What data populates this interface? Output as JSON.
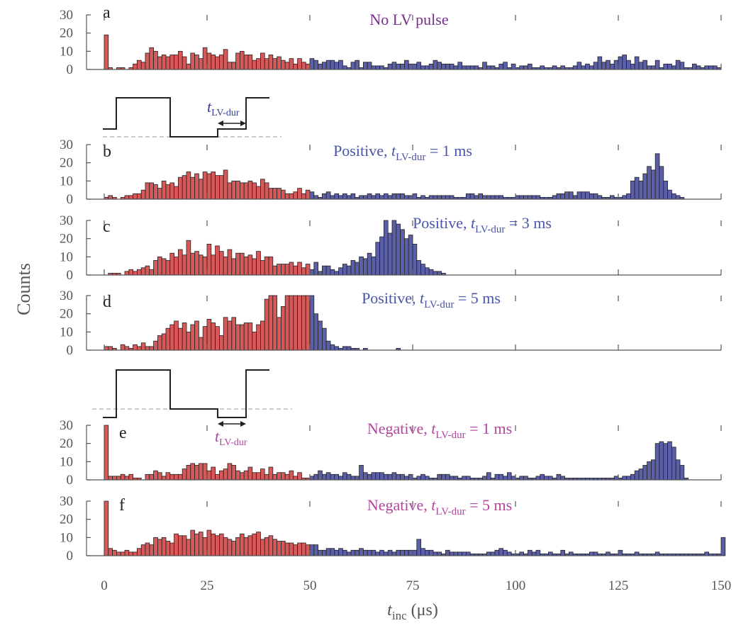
{
  "figure": {
    "ylabel": "Counts",
    "xlabel_main": "t",
    "xlabel_sub": "inc",
    "xlabel_unit": " (μs)",
    "xticks": [
      0,
      25,
      50,
      75,
      100,
      125,
      150
    ],
    "xlim": [
      0,
      150
    ],
    "yticks": [
      0,
      10,
      20,
      30
    ],
    "ylim": [
      0,
      30
    ],
    "bin_width_us": 1,
    "split_us": 50
  },
  "colors": {
    "early": "#d65858",
    "late": "#5a5fa8",
    "title_positive": "#4a56a8",
    "title_nolv": "#7a2e8c",
    "title_negative": "#b0469e"
  },
  "pulse_labels": {
    "t": "t",
    "sub": "LV-dur"
  },
  "chart_data": [
    {
      "type": "bar",
      "letter": "a",
      "title": {
        "pre": "No LV pulse",
        "t": "",
        "sub": "",
        "post": ""
      },
      "x_start": 0,
      "bin_width": 1,
      "values": [
        19,
        1,
        0,
        1,
        1,
        0,
        1,
        3,
        5,
        4,
        9,
        12,
        10,
        7,
        8,
        7,
        8,
        8,
        10,
        7,
        3,
        9,
        8,
        6,
        12,
        9,
        8,
        7,
        8,
        11,
        4,
        4,
        9,
        10,
        8,
        8,
        5,
        6,
        9,
        6,
        8,
        6,
        7,
        5,
        4,
        6,
        3,
        6,
        4,
        3,
        6,
        5,
        3,
        4,
        5,
        5,
        4,
        5,
        2,
        1,
        4,
        5,
        1,
        4,
        4,
        2,
        2,
        2,
        1,
        3,
        4,
        3,
        3,
        5,
        3,
        3,
        4,
        2,
        2,
        3,
        5,
        4,
        3,
        3,
        3,
        2,
        4,
        2,
        2,
        2,
        2,
        1,
        4,
        2,
        2,
        1,
        3,
        4,
        1,
        3,
        1,
        2,
        2,
        3,
        1,
        1,
        2,
        1,
        1,
        2,
        1,
        2,
        1,
        1,
        2,
        4,
        2,
        3,
        2,
        4,
        7,
        4,
        5,
        3,
        5,
        7,
        8,
        5,
        3,
        7,
        4,
        5,
        2,
        2,
        5,
        1,
        3,
        3,
        2,
        5,
        4,
        1,
        1,
        3,
        2,
        1,
        2,
        2,
        2,
        1
      ]
    },
    {
      "type": "bar",
      "letter": "b",
      "title": {
        "pre": "Positive,  ",
        "t": "t",
        "sub": "LV-dur",
        "post": " = 1 ms"
      },
      "x_start": 0,
      "bin_width": 1,
      "values": [
        1,
        2,
        1,
        0,
        1,
        2,
        2,
        3,
        3,
        5,
        9,
        9,
        8,
        6,
        10,
        8,
        9,
        7,
        12,
        13,
        15,
        12,
        14,
        11,
        15,
        14,
        15,
        13,
        13,
        16,
        9,
        10,
        10,
        9,
        9,
        10,
        9,
        7,
        11,
        9,
        6,
        6,
        6,
        5,
        3,
        3,
        4,
        6,
        3,
        5,
        4,
        2,
        1,
        3,
        4,
        2,
        3,
        2,
        3,
        2,
        3,
        1,
        2,
        2,
        3,
        2,
        3,
        2,
        3,
        2,
        3,
        3,
        3,
        2,
        2,
        3,
        1,
        2,
        1,
        2,
        2,
        2,
        2,
        2,
        2,
        1,
        1,
        1,
        3,
        3,
        2,
        3,
        2,
        2,
        2,
        2,
        2,
        1,
        1,
        1,
        2,
        2,
        2,
        2,
        2,
        2,
        1,
        1,
        1,
        2,
        3,
        3,
        4,
        4,
        2,
        4,
        4,
        4,
        3,
        3,
        2,
        1,
        1,
        2,
        1,
        1,
        2,
        3,
        10,
        12,
        10,
        14,
        18,
        16,
        25,
        18,
        10,
        5,
        3,
        2,
        1
      ]
    },
    {
      "type": "bar",
      "letter": "c",
      "title": {
        "pre": "Positive,  ",
        "t": "t",
        "sub": "LV-dur",
        "post": " = 3 ms"
      },
      "x_start": 1,
      "bin_width": 1,
      "values": [
        1,
        1,
        1,
        0,
        2,
        3,
        2,
        3,
        4,
        5,
        3,
        8,
        10,
        9,
        8,
        12,
        10,
        14,
        11,
        19,
        12,
        13,
        11,
        10,
        17,
        11,
        16,
        13,
        10,
        14,
        9,
        12,
        12,
        10,
        11,
        9,
        13,
        8,
        10,
        10,
        5,
        6,
        6,
        6,
        7,
        5,
        7,
        4,
        6,
        3,
        7,
        2,
        5,
        5,
        3,
        2,
        4,
        6,
        5,
        8,
        7,
        10,
        9,
        12,
        10,
        18,
        21,
        30,
        23,
        30,
        28,
        25,
        20,
        22,
        17,
        8,
        6,
        4,
        3,
        2,
        2,
        1
      ]
    },
    {
      "type": "bar",
      "letter": "d",
      "title": {
        "pre": "Positive,  ",
        "t": "t",
        "sub": "LV-dur",
        "post": " = 5 ms"
      },
      "x_start": 0,
      "bin_width": 1,
      "values": [
        2,
        2,
        1,
        0,
        3,
        2,
        1,
        3,
        2,
        4,
        2,
        2,
        5,
        8,
        9,
        12,
        14,
        16,
        12,
        15,
        10,
        14,
        16,
        7,
        13,
        17,
        15,
        13,
        8,
        18,
        16,
        18,
        14,
        14,
        15,
        15,
        10,
        14,
        16,
        28,
        35,
        30,
        18,
        24,
        30,
        33,
        36,
        34,
        30,
        34,
        30,
        20,
        16,
        12,
        5,
        3,
        2,
        1,
        2,
        2,
        1,
        1,
        0,
        1,
        0,
        0,
        0,
        0,
        0,
        0,
        0,
        1
      ]
    },
    {
      "type": "bar",
      "letter": "e",
      "title": {
        "pre": "Negative,  ",
        "t": "t",
        "sub": "LV-dur",
        "post": " = 1 ms"
      },
      "x_start": 0,
      "bin_width": 1,
      "values": [
        30,
        2,
        2,
        2,
        3,
        2,
        3,
        1,
        1,
        0,
        3,
        3,
        5,
        4,
        2,
        4,
        3,
        3,
        3,
        6,
        8,
        9,
        8,
        9,
        9,
        5,
        7,
        3,
        5,
        6,
        9,
        8,
        5,
        4,
        5,
        7,
        4,
        4,
        6,
        3,
        7,
        3,
        4,
        4,
        3,
        5,
        2,
        4,
        1,
        1,
        2,
        3,
        5,
        3,
        4,
        3,
        3,
        2,
        4,
        3,
        2,
        2,
        8,
        4,
        3,
        4,
        4,
        4,
        3,
        3,
        4,
        3,
        3,
        2,
        3,
        1,
        2,
        3,
        2,
        1,
        1,
        3,
        3,
        3,
        2,
        2,
        1,
        2,
        2,
        1,
        1,
        1,
        2,
        4,
        1,
        3,
        3,
        2,
        4,
        2,
        1,
        2,
        2,
        1,
        1,
        2,
        3,
        2,
        2,
        1,
        3,
        2,
        1,
        1,
        1,
        1,
        1,
        1,
        1,
        1,
        1,
        1,
        1,
        1,
        2,
        1,
        2,
        2,
        3,
        5,
        6,
        8,
        10,
        11,
        20,
        21,
        20,
        21,
        18,
        11,
        8,
        1
      ]
    },
    {
      "type": "bar",
      "letter": "f",
      "title": {
        "pre": "Negative,  ",
        "t": "t",
        "sub": "LV-dur",
        "post": " = 5 ms"
      },
      "x_start": 0,
      "bin_width": 1,
      "values": [
        30,
        4,
        3,
        2,
        2,
        3,
        2,
        2,
        4,
        6,
        7,
        6,
        10,
        9,
        10,
        8,
        7,
        12,
        11,
        11,
        9,
        14,
        12,
        13,
        10,
        14,
        12,
        11,
        12,
        10,
        9,
        8,
        10,
        12,
        10,
        11,
        12,
        13,
        9,
        10,
        11,
        9,
        8,
        8,
        7,
        7,
        6,
        7,
        7,
        6,
        6,
        6,
        3,
        3,
        4,
        4,
        3,
        4,
        3,
        2,
        3,
        3,
        4,
        3,
        3,
        3,
        2,
        3,
        2,
        3,
        2,
        3,
        3,
        3,
        3,
        3,
        9,
        4,
        3,
        3,
        2,
        2,
        1,
        3,
        2,
        2,
        2,
        2,
        2,
        1,
        1,
        1,
        1,
        2,
        2,
        3,
        4,
        3,
        2,
        1,
        1,
        2,
        1,
        3,
        2,
        3,
        1,
        1,
        2,
        1,
        1,
        3,
        1,
        2,
        1,
        1,
        1,
        1,
        2,
        2,
        1,
        1,
        2,
        1,
        1,
        3,
        1,
        1,
        1,
        2,
        1,
        1,
        1,
        1,
        2,
        1,
        1,
        1,
        1,
        1,
        1,
        1,
        1,
        1,
        1,
        1,
        2,
        1,
        1,
        1,
        10
      ]
    }
  ]
}
